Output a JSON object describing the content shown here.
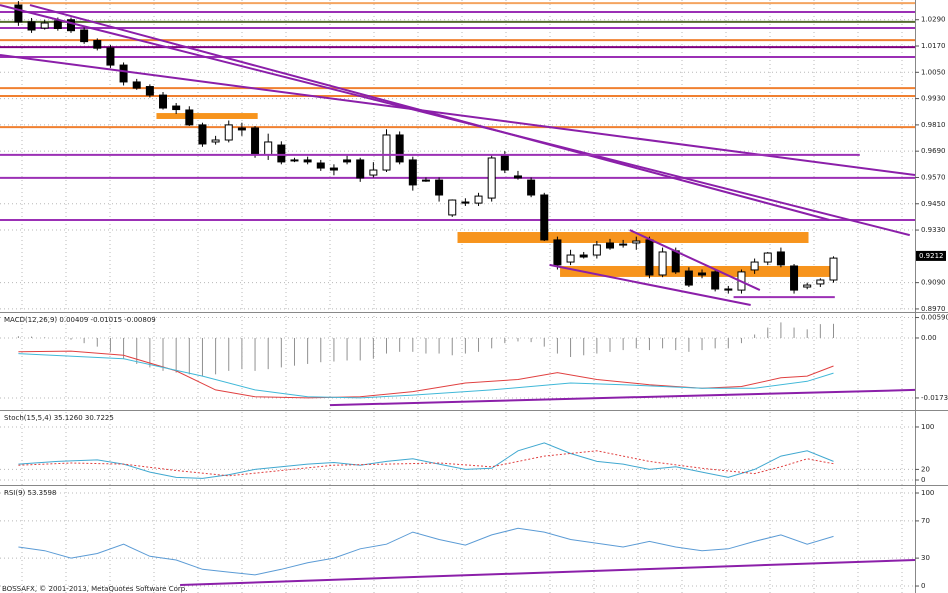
{
  "footer": "BOSSAFX, © 2001-2013, MetaQuotes Software Corp.",
  "chart_data": [
    {
      "type": "candlestick",
      "xlim": [
        -1.4,
        68.2
      ],
      "ylim": [
        0.8956,
        1.038
      ],
      "grid": true,
      "up_color": "#ffffff",
      "down_color": "#000000",
      "current_price": 0.9212,
      "yticks": [
        {
          "value": 1.029,
          "label": "1.0290"
        },
        {
          "value": 1.017,
          "label": "1.0170"
        },
        {
          "value": 1.005,
          "label": "1.0050"
        },
        {
          "value": 0.993,
          "label": "0.9930"
        },
        {
          "value": 0.981,
          "label": "0.9810"
        },
        {
          "value": 0.969,
          "label": "0.9690"
        },
        {
          "value": 0.957,
          "label": "0.9570"
        },
        {
          "value": 0.945,
          "label": "0.9450"
        },
        {
          "value": 0.933,
          "label": "0.9330"
        },
        {
          "value": 0.909,
          "label": "0.9090"
        },
        {
          "value": 0.897,
          "label": "0.8970"
        }
      ],
      "candles": [
        [
          1.0357,
          1.0375,
          1.0262,
          1.028
        ],
        [
          1.028,
          1.0298,
          1.023,
          1.0243
        ],
        [
          1.0252,
          1.029,
          1.0245,
          1.0275
        ],
        [
          1.0285,
          1.03,
          1.024,
          1.025
        ],
        [
          1.029,
          1.03,
          1.023,
          1.024
        ],
        [
          1.0243,
          1.026,
          1.018,
          1.019
        ],
        [
          1.0195,
          1.0205,
          1.015,
          1.016
        ],
        [
          1.0161,
          1.0175,
          1.007,
          1.0083
        ],
        [
          1.0083,
          1.0095,
          0.999,
          1.0006
        ],
        [
          1.0006,
          1.002,
          0.997,
          0.9978
        ],
        [
          0.9985,
          0.9995,
          0.9935,
          0.9946
        ],
        [
          0.9946,
          0.996,
          0.988,
          0.9887
        ],
        [
          0.9896,
          0.991,
          0.986,
          0.988
        ],
        [
          0.9878,
          0.9895,
          0.9805,
          0.981
        ],
        [
          0.981,
          0.982,
          0.971,
          0.9723
        ],
        [
          0.9732,
          0.976,
          0.972,
          0.9741
        ],
        [
          0.9741,
          0.983,
          0.973,
          0.981
        ],
        [
          0.9796,
          0.982,
          0.976,
          0.9787
        ],
        [
          0.9796,
          0.9805,
          0.966,
          0.9673
        ],
        [
          0.9673,
          0.977,
          0.965,
          0.9732
        ],
        [
          0.9718,
          0.9735,
          0.963,
          0.9641
        ],
        [
          0.965,
          0.966,
          0.964,
          0.965
        ],
        [
          0.965,
          0.9665,
          0.963,
          0.9641
        ],
        [
          0.9636,
          0.965,
          0.96,
          0.9613
        ],
        [
          0.9613,
          0.963,
          0.958,
          0.9604
        ],
        [
          0.965,
          0.967,
          0.963,
          0.9641
        ],
        [
          0.965,
          0.966,
          0.955,
          0.9568
        ],
        [
          0.9581,
          0.964,
          0.957,
          0.9604
        ],
        [
          0.9604,
          0.979,
          0.9595,
          0.9764
        ],
        [
          0.9764,
          0.978,
          0.963,
          0.9641
        ],
        [
          0.965,
          0.9665,
          0.951,
          0.9536
        ],
        [
          0.9558,
          0.957,
          0.955,
          0.9558
        ],
        [
          0.9558,
          0.957,
          0.946,
          0.949
        ],
        [
          0.9399,
          0.947,
          0.939,
          0.9467
        ],
        [
          0.9458,
          0.9475,
          0.944,
          0.9453
        ],
        [
          0.9453,
          0.95,
          0.944,
          0.9485
        ],
        [
          0.9476,
          0.967,
          0.946,
          0.9659
        ],
        [
          0.9668,
          0.969,
          0.959,
          0.9604
        ],
        [
          0.9577,
          0.96,
          0.956,
          0.9568
        ],
        [
          0.9558,
          0.957,
          0.948,
          0.949
        ],
        [
          0.949,
          0.95,
          0.928,
          0.9285
        ],
        [
          0.9285,
          0.93,
          0.915,
          0.9171
        ],
        [
          0.9184,
          0.924,
          0.917,
          0.9216
        ],
        [
          0.9216,
          0.923,
          0.92,
          0.9207
        ],
        [
          0.9216,
          0.928,
          0.92,
          0.9262
        ],
        [
          0.9271,
          0.929,
          0.924,
          0.9248
        ],
        [
          0.9262,
          0.9285,
          0.925,
          0.9266
        ],
        [
          0.9271,
          0.93,
          0.924,
          0.928
        ],
        [
          0.9285,
          0.93,
          0.911,
          0.9125
        ],
        [
          0.9125,
          0.925,
          0.9115,
          0.923
        ],
        [
          0.9235,
          0.925,
          0.913,
          0.9139
        ],
        [
          0.9143,
          0.916,
          0.907,
          0.9079
        ],
        [
          0.9134,
          0.915,
          0.911,
          0.9125
        ],
        [
          0.9139,
          0.915,
          0.905,
          0.9061
        ],
        [
          0.9061,
          0.9075,
          0.904,
          0.9056
        ],
        [
          0.9056,
          0.915,
          0.904,
          0.9139
        ],
        [
          0.9148,
          0.92,
          0.913,
          0.9184
        ],
        [
          0.9184,
          0.923,
          0.917,
          0.9225
        ],
        [
          0.923,
          0.925,
          0.916,
          0.9171
        ],
        [
          0.9166,
          0.9175,
          0.904,
          0.9056
        ],
        [
          0.907,
          0.909,
          0.906,
          0.9079
        ],
        [
          0.9084,
          0.911,
          0.907,
          0.9102
        ],
        [
          0.9102,
          0.921,
          0.909,
          0.9202
        ]
      ],
      "levels": [
        {
          "value": 1.0366,
          "color": "#f4a460"
        },
        {
          "value": 1.0325,
          "color": "#9b30b5"
        },
        {
          "value": 1.028,
          "color": "#556b2f"
        },
        {
          "value": 1.0252,
          "color": "#9b30b5"
        },
        {
          "value": 1.0197,
          "color": "#f08030"
        },
        {
          "value": 1.0165,
          "color": "#800080"
        },
        {
          "value": 1.012,
          "color": "#9b30b5"
        },
        {
          "value": 0.9978,
          "color": "#f08030"
        },
        {
          "value": 0.9942,
          "color": "#f08030"
        },
        {
          "value": 0.98,
          "color": "#f08030"
        },
        {
          "value": 0.9568,
          "color": "#9b30b5"
        },
        {
          "value": 0.9376,
          "color": "#9b30b5"
        }
      ],
      "zones": [
        {
          "x": [
            10.5,
            18.2
          ],
          "y": [
            0.9864,
            0.9837
          ],
          "color": "#f7941d"
        },
        {
          "x": [
            33.4,
            60.1
          ],
          "y": [
            0.9321,
            0.9271
          ],
          "color": "#f7941d"
        },
        {
          "x": [
            41.2,
            62.1
          ],
          "y": [
            0.9166,
            0.9116
          ],
          "color": "#f7941d"
        }
      ],
      "trendlines": [
        {
          "x": [
            -1.4,
            67.8
          ],
          "y": [
            1.0357,
            0.9307
          ],
          "color": "#8b1fa9"
        },
        {
          "x": [
            -1.4,
            68.2
          ],
          "y": [
            1.0129,
            0.9581
          ],
          "color": "#8b1fa9"
        },
        {
          "x": [
            0.88,
            61.7
          ],
          "y": [
            1.0357,
            0.9376
          ],
          "color": "#8b1fa9"
        },
        {
          "x": [
            -1.4,
            64.0
          ],
          "y": [
            0.9673,
            0.9673
          ],
          "color": "#9b30b5"
        },
        {
          "x": [
            46.5,
            56.4
          ],
          "y": [
            0.933,
            0.9056
          ],
          "color": "#8b1fa9"
        },
        {
          "x": [
            40.4,
            55.7
          ],
          "y": [
            0.9171,
            0.8988
          ],
          "color": "#8b1fa9"
        },
        {
          "x": [
            54.4,
            62.1
          ],
          "y": [
            0.9024,
            0.9024
          ],
          "color": "#9b30b5"
        }
      ]
    },
    {
      "type": "indicator",
      "title": "MACD(12,26,9) 0.00409 -0.01015 -0.00809",
      "xlim": [
        -1.4,
        68.2
      ],
      "ylim": [
        -0.0208,
        0.0075
      ],
      "grid": true,
      "yticks": [
        {
          "value": 0.0059,
          "label": "0.00590"
        },
        {
          "value": 0,
          "label": "0.00"
        },
        {
          "value": -0.01732,
          "label": "-0.01732"
        }
      ],
      "bars": {
        "color": "#909090",
        "values": [
          0.0005,
          0.0004,
          0.0002,
          0,
          -0.0005,
          -0.0015,
          -0.0025,
          -0.004,
          -0.006,
          -0.0075,
          -0.0085,
          -0.0095,
          -0.01,
          -0.0105,
          -0.011,
          -0.0105,
          -0.0095,
          -0.009,
          -0.0095,
          -0.009,
          -0.0085,
          -0.008,
          -0.0075,
          -0.007,
          -0.0068,
          -0.0065,
          -0.0065,
          -0.006,
          -0.0045,
          -0.004,
          -0.004,
          -0.0045,
          -0.0045,
          -0.005,
          -0.0045,
          -0.004,
          -0.003,
          -0.0015,
          -0.001,
          -0.0012,
          -0.0025,
          -0.0045,
          -0.0055,
          -0.005,
          -0.0045,
          -0.004,
          -0.0035,
          -0.003,
          -0.0035,
          -0.003,
          -0.0035,
          -0.004,
          -0.0035,
          -0.003,
          -0.003,
          -0.0015,
          0.001,
          0.003,
          0.0045,
          0.003,
          0.0025,
          0.004,
          0.00409
        ]
      },
      "series": [
        {
          "color": "#e04040",
          "x": [
            0,
            4,
            8,
            12,
            15,
            18,
            22,
            26,
            30,
            34,
            36,
            38,
            41,
            44,
            48,
            52,
            55,
            58,
            60,
            62
          ],
          "values": [
            -0.004,
            -0.0038,
            -0.005,
            -0.0095,
            -0.015,
            -0.017,
            -0.0173,
            -0.017,
            -0.0155,
            -0.013,
            -0.0125,
            -0.012,
            -0.01,
            -0.012,
            -0.0135,
            -0.0145,
            -0.014,
            -0.0115,
            -0.011,
            -0.00809
          ]
        },
        {
          "color": "#40b8d8",
          "x": [
            0,
            8,
            14,
            18,
            22,
            26,
            30,
            36,
            42,
            46,
            52,
            56,
            60,
            62
          ],
          "values": [
            -0.0045,
            -0.006,
            -0.011,
            -0.015,
            -0.017,
            -0.0173,
            -0.0165,
            -0.015,
            -0.013,
            -0.0135,
            -0.0145,
            -0.0145,
            -0.0125,
            -0.01015
          ]
        }
      ],
      "trendlines": [
        {
          "x": [
            23.7,
            68.2
          ],
          "y": [
            -0.0194,
            -0.015
          ],
          "color": "#8b1fa9"
        }
      ]
    },
    {
      "type": "indicator",
      "title": "Stoch(15,5,4) 35.1260 30.7225",
      "xlim": [
        -1.4,
        68.2
      ],
      "ylim": [
        -9.4,
        132
      ],
      "grid": true,
      "yticks": [
        100,
        20,
        0
      ],
      "series": [
        {
          "color": "#40a8d0",
          "x": [
            0,
            3,
            6,
            8,
            10,
            12,
            14,
            16,
            18,
            20,
            22,
            24,
            26,
            28,
            30,
            32,
            34,
            36,
            38,
            40,
            42,
            44,
            46,
            48,
            50,
            52,
            54,
            56,
            58,
            60,
            62
          ],
          "values": [
            30,
            35,
            38,
            30,
            15,
            5,
            3,
            10,
            20,
            25,
            30,
            33,
            28,
            35,
            40,
            30,
            20,
            22,
            55,
            70,
            50,
            35,
            30,
            20,
            25,
            15,
            5,
            20,
            45,
            55,
            35.126
          ]
        },
        {
          "color": "#e04040",
          "dashed": true,
          "x": [
            0,
            4,
            8,
            12,
            16,
            20,
            24,
            28,
            32,
            36,
            40,
            44,
            48,
            52,
            56,
            58,
            60,
            62
          ],
          "values": [
            28,
            32,
            30,
            18,
            8,
            18,
            28,
            30,
            32,
            25,
            45,
            55,
            35,
            22,
            12,
            25,
            40,
            30.7225
          ]
        }
      ]
    },
    {
      "type": "indicator",
      "title": "RSI(9) 53.3598",
      "xlim": [
        -1.4,
        68.2
      ],
      "ylim": [
        -7.5,
        108.6
      ],
      "grid": true,
      "yticks": [
        100,
        70,
        30,
        0
      ],
      "series": [
        {
          "color": "#5b9bd5",
          "x": [
            0,
            2,
            4,
            6,
            8,
            10,
            12,
            14,
            16,
            18,
            20,
            22,
            24,
            26,
            28,
            30,
            32,
            34,
            36,
            38,
            40,
            42,
            44,
            46,
            48,
            50,
            52,
            54,
            56,
            58,
            60,
            62
          ],
          "values": [
            42,
            38,
            30,
            35,
            45,
            32,
            28,
            18,
            15,
            12,
            18,
            25,
            30,
            40,
            45,
            58,
            50,
            44,
            55,
            62,
            58,
            50,
            46,
            42,
            48,
            42,
            38,
            40,
            48,
            55,
            45,
            53.3598
          ]
        }
      ],
      "trendlines": [
        {
          "x": [
            12.3,
            68.2
          ],
          "y": [
            1.1,
            28
          ],
          "color": "#8b1fa9"
        }
      ]
    }
  ]
}
